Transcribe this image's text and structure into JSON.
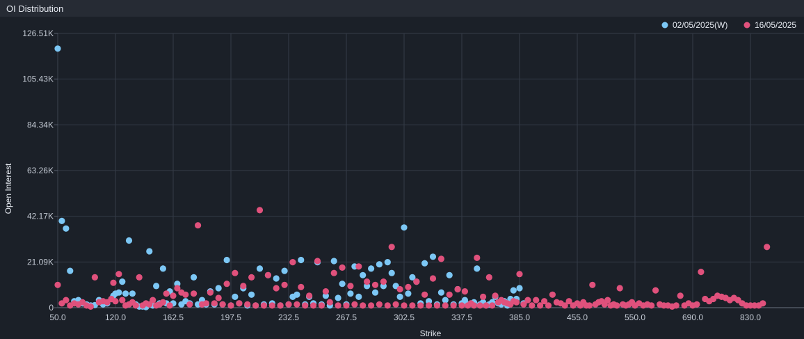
{
  "panel": {
    "title": "OI Distribution"
  },
  "chart_data": {
    "type": "scatter",
    "xlabel": "Strike",
    "ylabel": "Open Interest",
    "yticks": [
      "0",
      "21.09K",
      "42.17K",
      "63.26K",
      "84.34K",
      "105.43K",
      "126.51K"
    ],
    "xtick_labels": [
      "50.0",
      "120.0",
      "162.5",
      "197.5",
      "232.5",
      "267.5",
      "302.5",
      "337.5",
      "385.0",
      "455.0",
      "550.0",
      "690.0",
      "830.0"
    ],
    "grid": true,
    "legend_position": "top-right",
    "strikes": [
      50,
      55,
      60,
      65,
      70,
      75,
      80,
      85,
      90,
      95,
      100,
      105,
      110,
      115,
      117.5,
      120,
      122.5,
      125,
      127.5,
      130,
      132.5,
      135,
      137.5,
      140,
      142.5,
      145,
      147.5,
      150,
      152.5,
      155,
      157.5,
      160,
      162.5,
      165,
      167.5,
      170,
      172.5,
      175,
      177.5,
      180,
      182.5,
      185,
      187.5,
      190,
      192.5,
      195,
      197.5,
      200,
      202.5,
      205,
      207.5,
      210,
      212.5,
      215,
      217.5,
      220,
      222.5,
      225,
      227.5,
      230,
      232.5,
      235,
      237.5,
      240,
      242.5,
      245,
      247.5,
      250,
      252.5,
      255,
      257.5,
      260,
      262.5,
      265,
      267.5,
      270,
      272.5,
      275,
      277.5,
      280,
      282.5,
      285,
      287.5,
      290,
      292.5,
      295,
      297.5,
      300,
      302.5,
      305,
      307.5,
      310,
      312.5,
      315,
      317.5,
      320,
      322.5,
      325,
      327.5,
      330,
      332.5,
      335,
      337.5,
      340,
      342.5,
      345,
      347.5,
      350,
      352.5,
      355,
      357.5,
      360,
      362.5,
      365,
      367.5,
      370,
      372.5,
      375,
      377.5,
      380,
      382.5,
      385,
      390,
      395,
      400,
      405,
      410,
      415,
      420,
      425,
      430,
      435,
      440,
      445,
      450,
      455,
      460,
      465,
      470,
      475,
      480,
      485,
      490,
      495,
      500,
      505,
      510,
      515,
      520,
      525,
      530,
      535,
      540,
      545,
      550,
      560,
      570,
      580,
      590,
      600,
      610,
      620,
      630,
      640,
      650,
      660,
      670,
      680,
      690,
      700,
      710,
      720,
      730,
      740,
      750,
      760,
      770,
      780,
      790,
      800,
      810,
      820,
      830,
      840,
      850,
      860,
      870,
      880,
      890,
      900,
      910,
      920,
      930,
      940,
      950
    ],
    "series": [
      {
        "name": "02/05/2025(W)",
        "color": "#7cc7f5",
        "values": [
          119500,
          40000,
          36500,
          17000,
          3000,
          3500,
          2000,
          1500,
          1000,
          1200,
          3500,
          1500,
          2000,
          4000,
          5500,
          6500,
          7000,
          12000,
          6500,
          31000,
          6500,
          1500,
          500,
          500,
          300,
          26000,
          1000,
          10000,
          2000,
          18000,
          2000,
          7500,
          2000,
          11000,
          1500,
          3000,
          2000,
          14000,
          1500,
          3500,
          1500,
          7500,
          1500,
          9000,
          1500,
          22000,
          1000,
          5000,
          2000,
          9000,
          1000,
          6000,
          1000,
          18000,
          1500,
          15000,
          2000,
          13500,
          1000,
          17000,
          1500,
          5000,
          6000,
          22000,
          1500,
          5000,
          2000,
          21000,
          1500,
          5500,
          1000,
          21500,
          4500,
          11000,
          1500,
          6500,
          19000,
          5000,
          15000,
          10000,
          18000,
          7000,
          20000,
          10000,
          21000,
          16000,
          10000,
          5000,
          37000,
          6500,
          14000,
          12000,
          2000,
          20500,
          3000,
          23500,
          1500,
          7000,
          3500,
          15000,
          1500,
          8500,
          2000,
          3500,
          1500,
          2000,
          2500,
          18000,
          1500,
          2500,
          1000,
          1500,
          2500,
          5000,
          2000,
          1500,
          3000,
          1000,
          4000,
          8000,
          4000,
          9000,
          2000,
          0,
          0,
          0,
          0,
          0,
          0,
          0,
          0,
          0,
          0,
          0,
          0,
          0,
          0,
          0,
          0,
          0,
          0,
          0,
          0,
          0,
          0,
          0,
          0,
          0,
          0,
          0,
          0,
          0,
          0,
          0,
          0,
          0,
          0,
          0,
          0,
          0,
          0,
          0,
          0,
          0,
          0,
          0,
          0,
          0,
          0,
          0,
          0,
          0,
          0,
          0,
          0,
          0,
          0,
          0,
          0,
          0,
          0,
          0,
          0,
          0,
          0,
          0,
          0,
          0,
          0,
          0,
          0,
          0,
          0,
          0
        ]
      },
      {
        "name": "16/05/2025",
        "color": "#e0517c",
        "values": [
          10500,
          2000,
          3500,
          1000,
          2000,
          1500,
          2500,
          1000,
          500,
          14000,
          2500,
          3000,
          2500,
          4000,
          11500,
          3000,
          15500,
          3500,
          1000,
          1500,
          2500,
          1000,
          14000,
          1000,
          2000,
          1500,
          3500,
          1000,
          1500,
          2500,
          6500,
          1000,
          5500,
          9000,
          7000,
          6000,
          1500,
          6500,
          38000,
          1500,
          2000,
          7000,
          2000,
          4500,
          1500,
          11000,
          1000,
          16000,
          2000,
          10000,
          1500,
          14000,
          1000,
          45000,
          1000,
          15000,
          1000,
          9000,
          1000,
          10500,
          1500,
          21000,
          1500,
          9500,
          1000,
          5500,
          1000,
          21500,
          1000,
          7500,
          2500,
          16000,
          1000,
          18500,
          1000,
          10000,
          1500,
          19000,
          1000,
          12000,
          1000,
          10500,
          1500,
          12000,
          1000,
          28000,
          1500,
          8500,
          1000,
          9500,
          1000,
          12000,
          1000,
          6000,
          1000,
          13500,
          1000,
          22500,
          1000,
          6000,
          1000,
          8500,
          1000,
          7500,
          1000,
          2000,
          1000,
          23000,
          1000,
          5000,
          1000,
          14000,
          1000,
          5500,
          2500,
          3500,
          2500,
          2000,
          1500,
          3000,
          2500,
          15500,
          1500,
          3500,
          1000,
          3500,
          1000,
          3000,
          1000,
          6000,
          2500,
          2000,
          1000,
          3000,
          1000,
          2000,
          1000,
          2500,
          1000,
          1000,
          10500,
          1500,
          2500,
          3000,
          1500,
          3500,
          1000,
          1500,
          1000,
          9000,
          1500,
          1000,
          1500,
          2500,
          1000,
          2000,
          1000,
          1500,
          1000,
          8000,
          1500,
          1000,
          1000,
          500,
          1000,
          5500,
          1000,
          2000,
          1000,
          1500,
          16500,
          4000,
          3000,
          4000,
          5500,
          5000,
          4500,
          3500,
          4500,
          3500,
          2000,
          1000,
          1000,
          1000,
          1000,
          2000,
          28000
        ]
      }
    ]
  }
}
